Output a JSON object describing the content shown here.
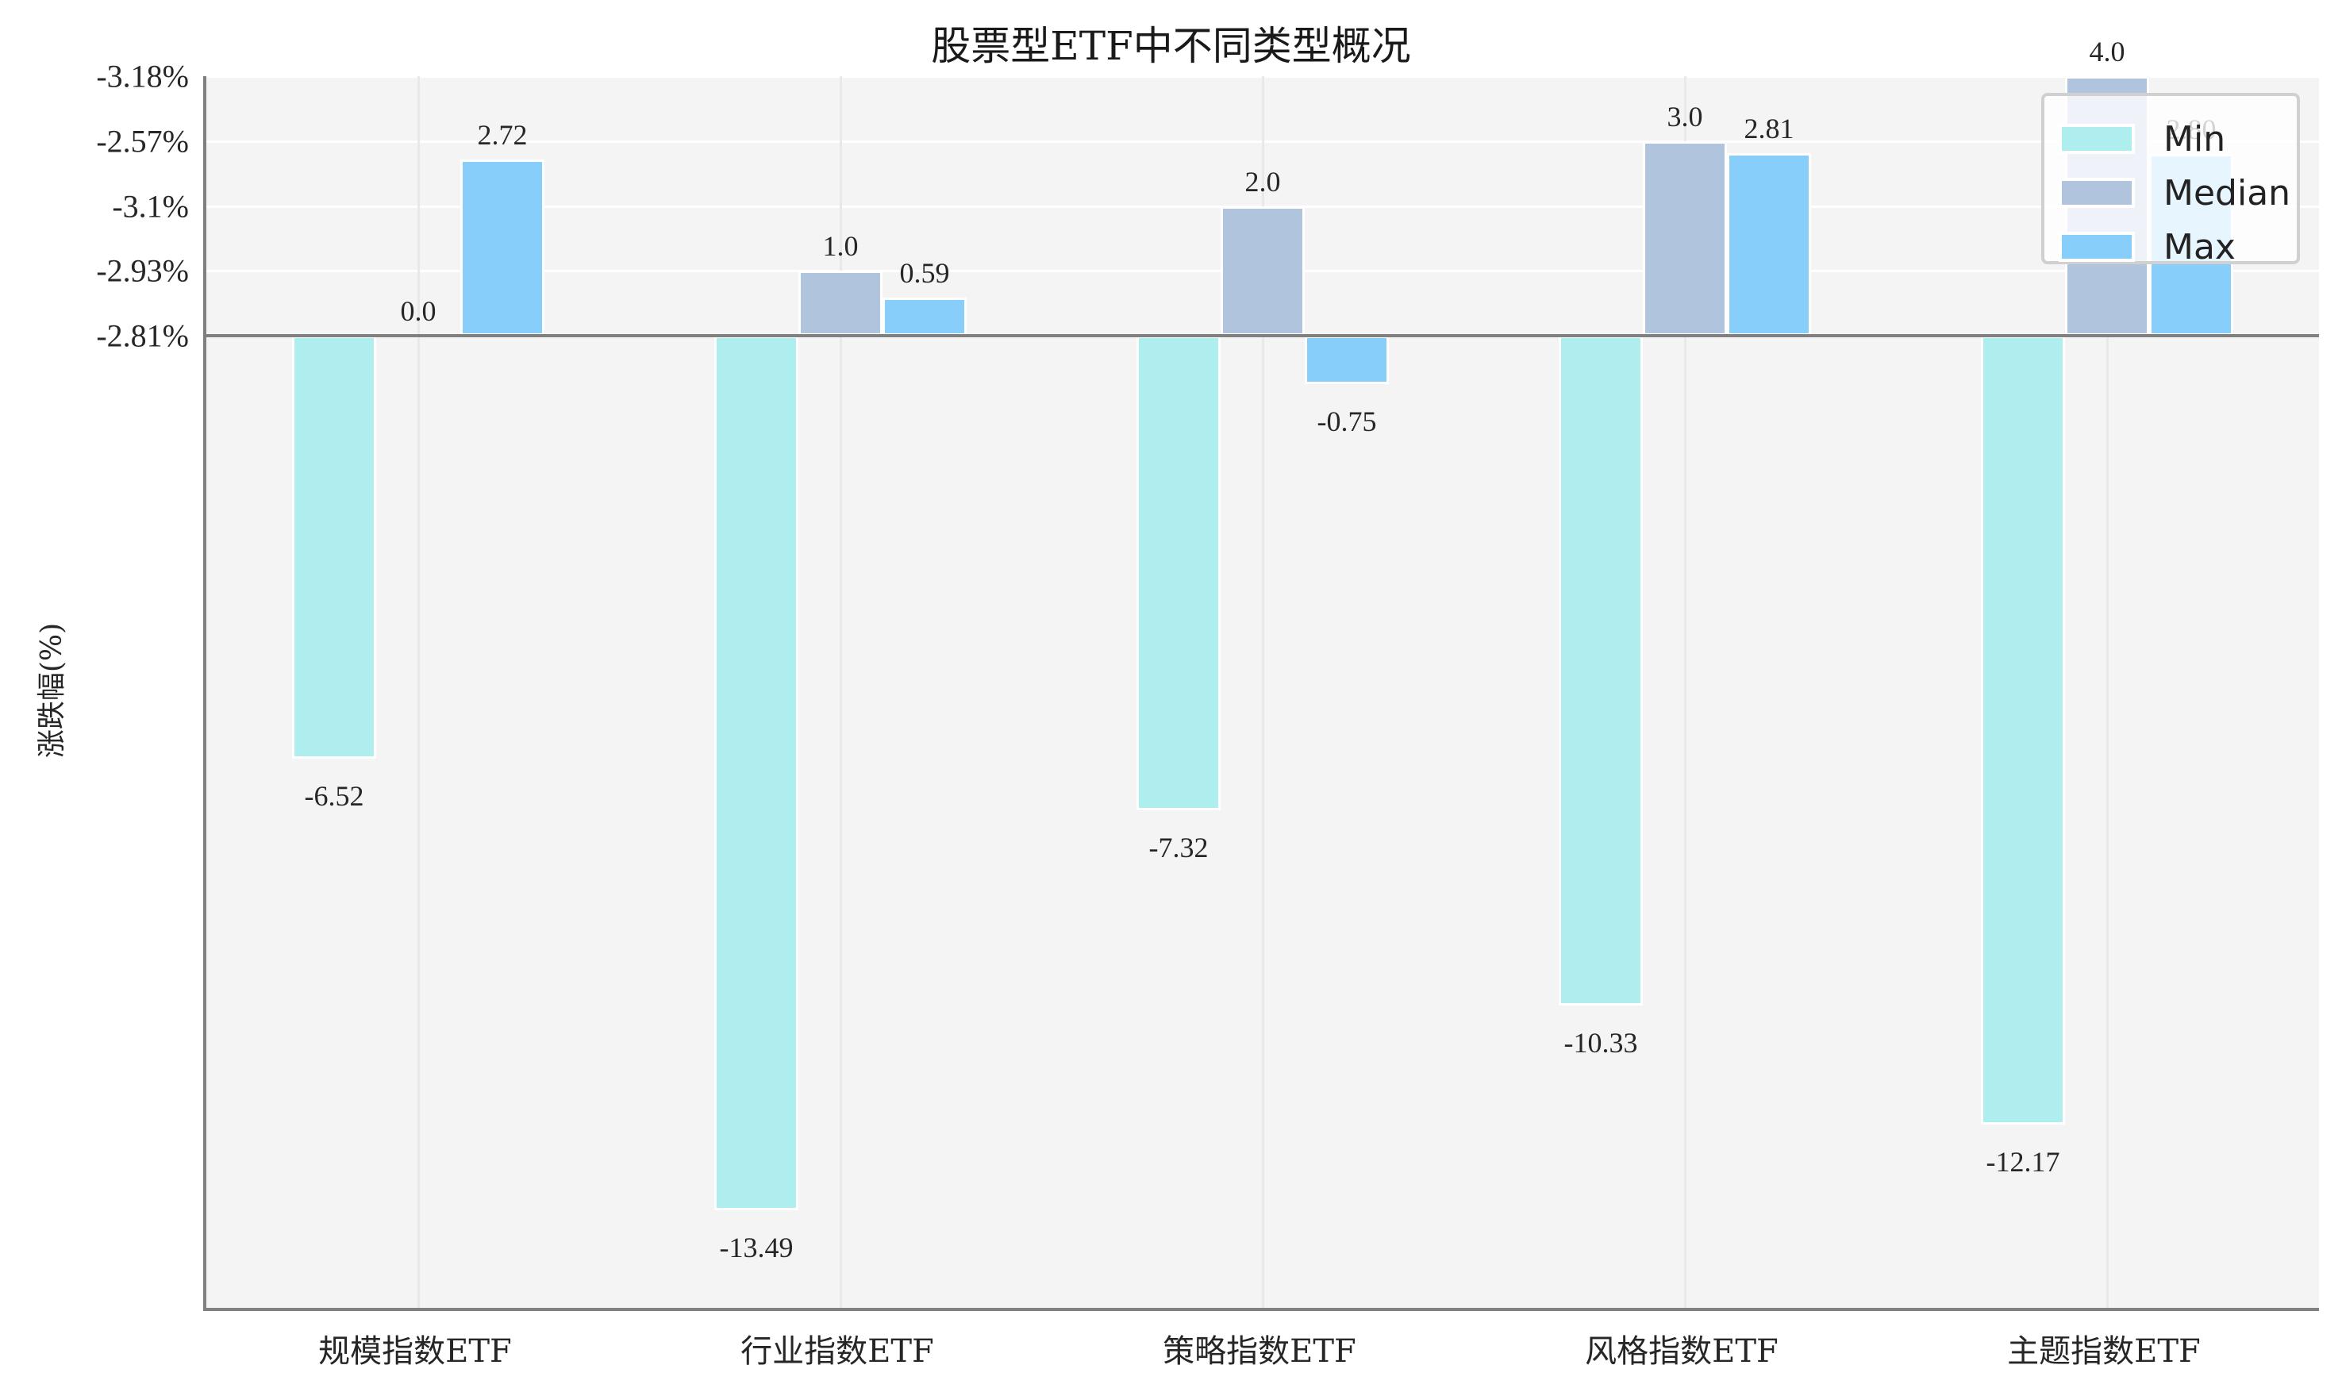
{
  "chart_data": {
    "type": "bar",
    "title": "股票型ETF中不同类型概况",
    "xlabel": "",
    "ylabel": "涨跌幅(%)",
    "categories": [
      "规模指数ETF",
      "行业指数ETF",
      "策略指数ETF",
      "风格指数ETF",
      "主题指数ETF"
    ],
    "series": [
      {
        "name": "Min",
        "color": "#afeeee",
        "values": [
          -6.52,
          -13.49,
          -7.32,
          -10.33,
          -12.17
        ],
        "labels": [
          "-6.52",
          "-13.49",
          "-7.32",
          "-10.33",
          "-12.17"
        ]
      },
      {
        "name": "Median",
        "color": "#b0c4de",
        "values": [
          0.0,
          1.0,
          2.0,
          3.0,
          4.0
        ],
        "labels": [
          "0.0",
          "1.0",
          "2.0",
          "3.0",
          "4.0"
        ]
      },
      {
        "name": "Max",
        "color": "#87cefa",
        "values": [
          2.72,
          0.59,
          -0.75,
          2.81,
          2.8
        ],
        "labels": [
          "2.72",
          "0.59",
          "-0.75",
          "2.81",
          "2.80"
        ]
      }
    ],
    "yticks": [
      {
        "value": 4,
        "label": "-3.18%"
      },
      {
        "value": 3,
        "label": "-2.57%"
      },
      {
        "value": 2,
        "label": "-3.1%"
      },
      {
        "value": 1,
        "label": "-2.93%"
      },
      {
        "value": 0,
        "label": "-2.81%"
      }
    ],
    "ylim": [
      -14.95,
      4.0
    ],
    "grid": true,
    "legend_position": "upper right"
  },
  "legend": {
    "items": [
      "Min",
      "Median",
      "Max"
    ]
  }
}
